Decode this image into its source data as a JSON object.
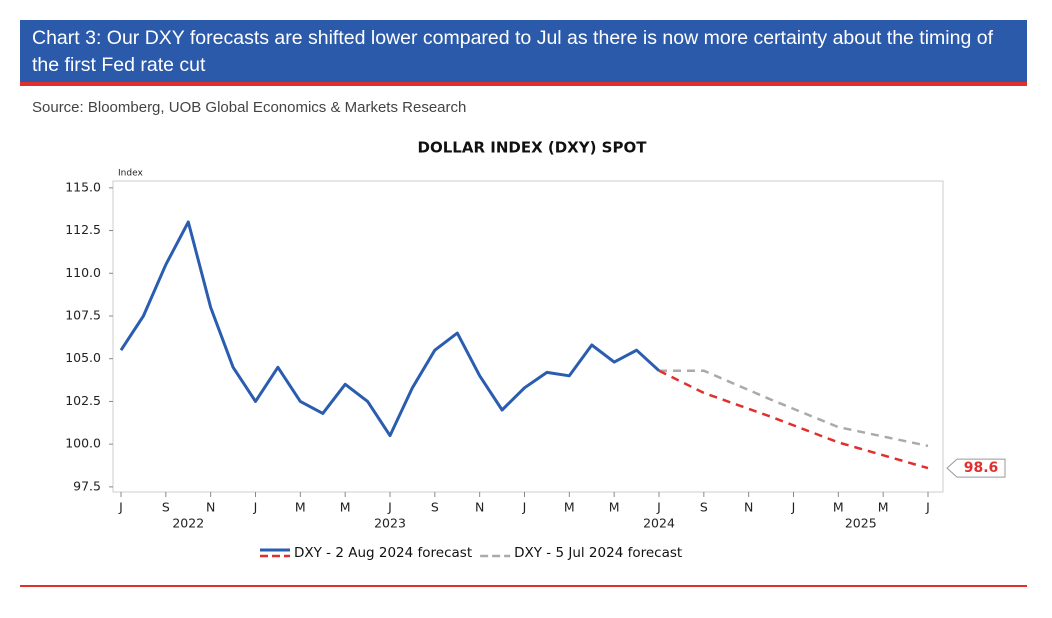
{
  "header": {
    "title": "Chart 3: Our DXY forecasts are shifted lower compared to Jul as there is now more certainty about the timing of the first Fed rate cut",
    "source": "Source: Bloomberg, UOB Global Economics & Markets Research"
  },
  "chart_data": {
    "type": "line",
    "title": "DOLLAR INDEX (DXY) SPOT",
    "y_label": "Index",
    "ylim": [
      97.2,
      115.4
    ],
    "yticks": [
      97.5,
      {
        "value": 100,
        "label": "100.0"
      },
      102.5,
      {
        "value": 105,
        "label": "105.0"
      },
      107.5,
      {
        "value": 110,
        "label": "110.0"
      },
      112.5,
      {
        "value": 115,
        "label": "115.0"
      }
    ],
    "xlim": [
      "2022-07",
      "2025-07"
    ],
    "xticks": [
      {
        "value": "2022-07",
        "label": "J"
      },
      {
        "value": "2022-09",
        "label": "S"
      },
      {
        "value": "2022-11",
        "label": "N"
      },
      {
        "value": "2023-01",
        "label": "J"
      },
      {
        "value": "2023-03",
        "label": "M"
      },
      {
        "value": "2023-05",
        "label": "M"
      },
      {
        "value": "2023-07",
        "label": "J"
      },
      {
        "value": "2023-09",
        "label": "S"
      },
      {
        "value": "2023-11",
        "label": "N"
      },
      {
        "value": "2024-01",
        "label": "J"
      },
      {
        "value": "2024-03",
        "label": "M"
      },
      {
        "value": "2024-05",
        "label": "M"
      },
      {
        "value": "2024-07",
        "label": "J"
      },
      {
        "value": "2024-09",
        "label": "S"
      },
      {
        "value": "2024-11",
        "label": "N"
      },
      {
        "value": "2025-01",
        "label": "J"
      },
      {
        "value": "2025-03",
        "label": "M"
      },
      {
        "value": "2025-05",
        "label": "M"
      },
      {
        "value": "2025-07",
        "label": "J"
      }
    ],
    "year_labels": [
      {
        "value": "2022-10",
        "label": "2022"
      },
      {
        "value": "2023-07",
        "label": "2023"
      },
      {
        "value": "2024-07",
        "label": "2024"
      },
      {
        "value": "2025-04",
        "label": "2025"
      }
    ],
    "series": [
      {
        "color": "#2a5db0",
        "dash": false,
        "x": [
          "2022-07",
          "2022-08",
          "2022-09",
          "2022-10",
          "2022-11",
          "2022-12",
          "2023-01",
          "2023-02",
          "2023-03",
          "2023-04",
          "2023-05",
          "2023-06",
          "2023-07",
          "2023-08",
          "2023-09",
          "2023-10",
          "2023-11",
          "2023-12",
          "2024-01",
          "2024-02",
          "2024-03",
          "2024-04",
          "2024-05",
          "2024-06",
          "2024-07"
        ],
        "values": [
          105.5,
          107.5,
          110.5,
          113.0,
          108.0,
          104.5,
          102.5,
          104.5,
          102.5,
          101.8,
          103.5,
          102.5,
          100.5,
          103.3,
          105.5,
          106.5,
          104.0,
          102.0,
          103.3,
          104.2,
          104.0,
          105.8,
          104.8,
          105.5,
          104.3
        ]
      },
      {
        "name": "DXY - 2 Aug 2024 forecast",
        "color": "#e0302e",
        "dash": true,
        "x": [
          "2024-07",
          "2024-09",
          "2024-12",
          "2025-03",
          "2025-07"
        ],
        "values": [
          104.3,
          103.0,
          101.6,
          100.1,
          98.6
        ],
        "value_labels": [
          null,
          null,
          null,
          null,
          "98.6"
        ]
      },
      {
        "name": "DXY - 5 Jul 2024 forecast",
        "color": "#aaaaaa",
        "dash": true,
        "x": [
          "2024-07",
          "2024-09",
          "2024-12",
          "2025-03",
          "2025-07"
        ],
        "values": [
          104.3,
          104.3,
          102.6,
          101.0,
          99.9
        ]
      }
    ]
  }
}
